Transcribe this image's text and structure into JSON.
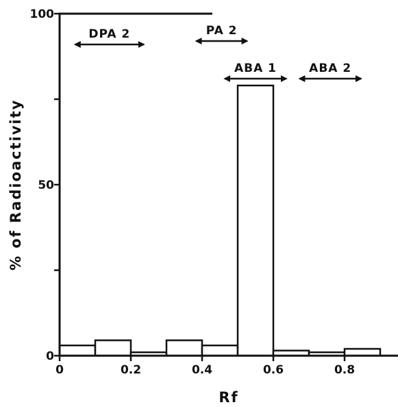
{
  "chart_data": {
    "type": "bar",
    "title": "",
    "xlabel": "Rf",
    "ylabel": "% of Radioactivity",
    "xlim": [
      0,
      0.95
    ],
    "ylim": [
      0,
      100
    ],
    "x_ticks": [
      {
        "value": 0,
        "label": "0"
      },
      {
        "value": 0.2,
        "label": "0.2"
      },
      {
        "value": 0.4,
        "label": "0.4"
      },
      {
        "value": 0.6,
        "label": "0.6"
      },
      {
        "value": 0.8,
        "label": "0.8"
      }
    ],
    "y_ticks": [
      {
        "value": 0,
        "label": "0"
      },
      {
        "value": 25,
        "label": ""
      },
      {
        "value": 50,
        "label": "50"
      },
      {
        "value": 75,
        "label": ""
      },
      {
        "value": 100,
        "label": "100"
      }
    ],
    "bars": [
      {
        "x0": 0.0,
        "x1": 0.1,
        "value": 3
      },
      {
        "x0": 0.1,
        "x1": 0.2,
        "value": 4.5
      },
      {
        "x0": 0.2,
        "x1": 0.3,
        "value": 1
      },
      {
        "x0": 0.3,
        "x1": 0.4,
        "value": 4.5
      },
      {
        "x0": 0.4,
        "x1": 0.5,
        "value": 3
      },
      {
        "x0": 0.5,
        "x1": 0.6,
        "value": 79
      },
      {
        "x0": 0.6,
        "x1": 0.7,
        "value": 1.5
      },
      {
        "x0": 0.7,
        "x1": 0.8,
        "value": 1
      },
      {
        "x0": 0.8,
        "x1": 0.9,
        "value": 2
      }
    ],
    "annotations": [
      {
        "label": "DPA 2",
        "x_start": 0.04,
        "x_end": 0.24,
        "y": 91
      },
      {
        "label": "PA 2",
        "x_start": 0.38,
        "x_end": 0.53,
        "y": 92
      },
      {
        "label": "ABA 1",
        "x_start": 0.46,
        "x_end": 0.64,
        "y": 81
      },
      {
        "label": "ABA 2",
        "x_start": 0.67,
        "x_end": 0.85,
        "y": 81
      }
    ],
    "grid": false,
    "legend": "none"
  }
}
